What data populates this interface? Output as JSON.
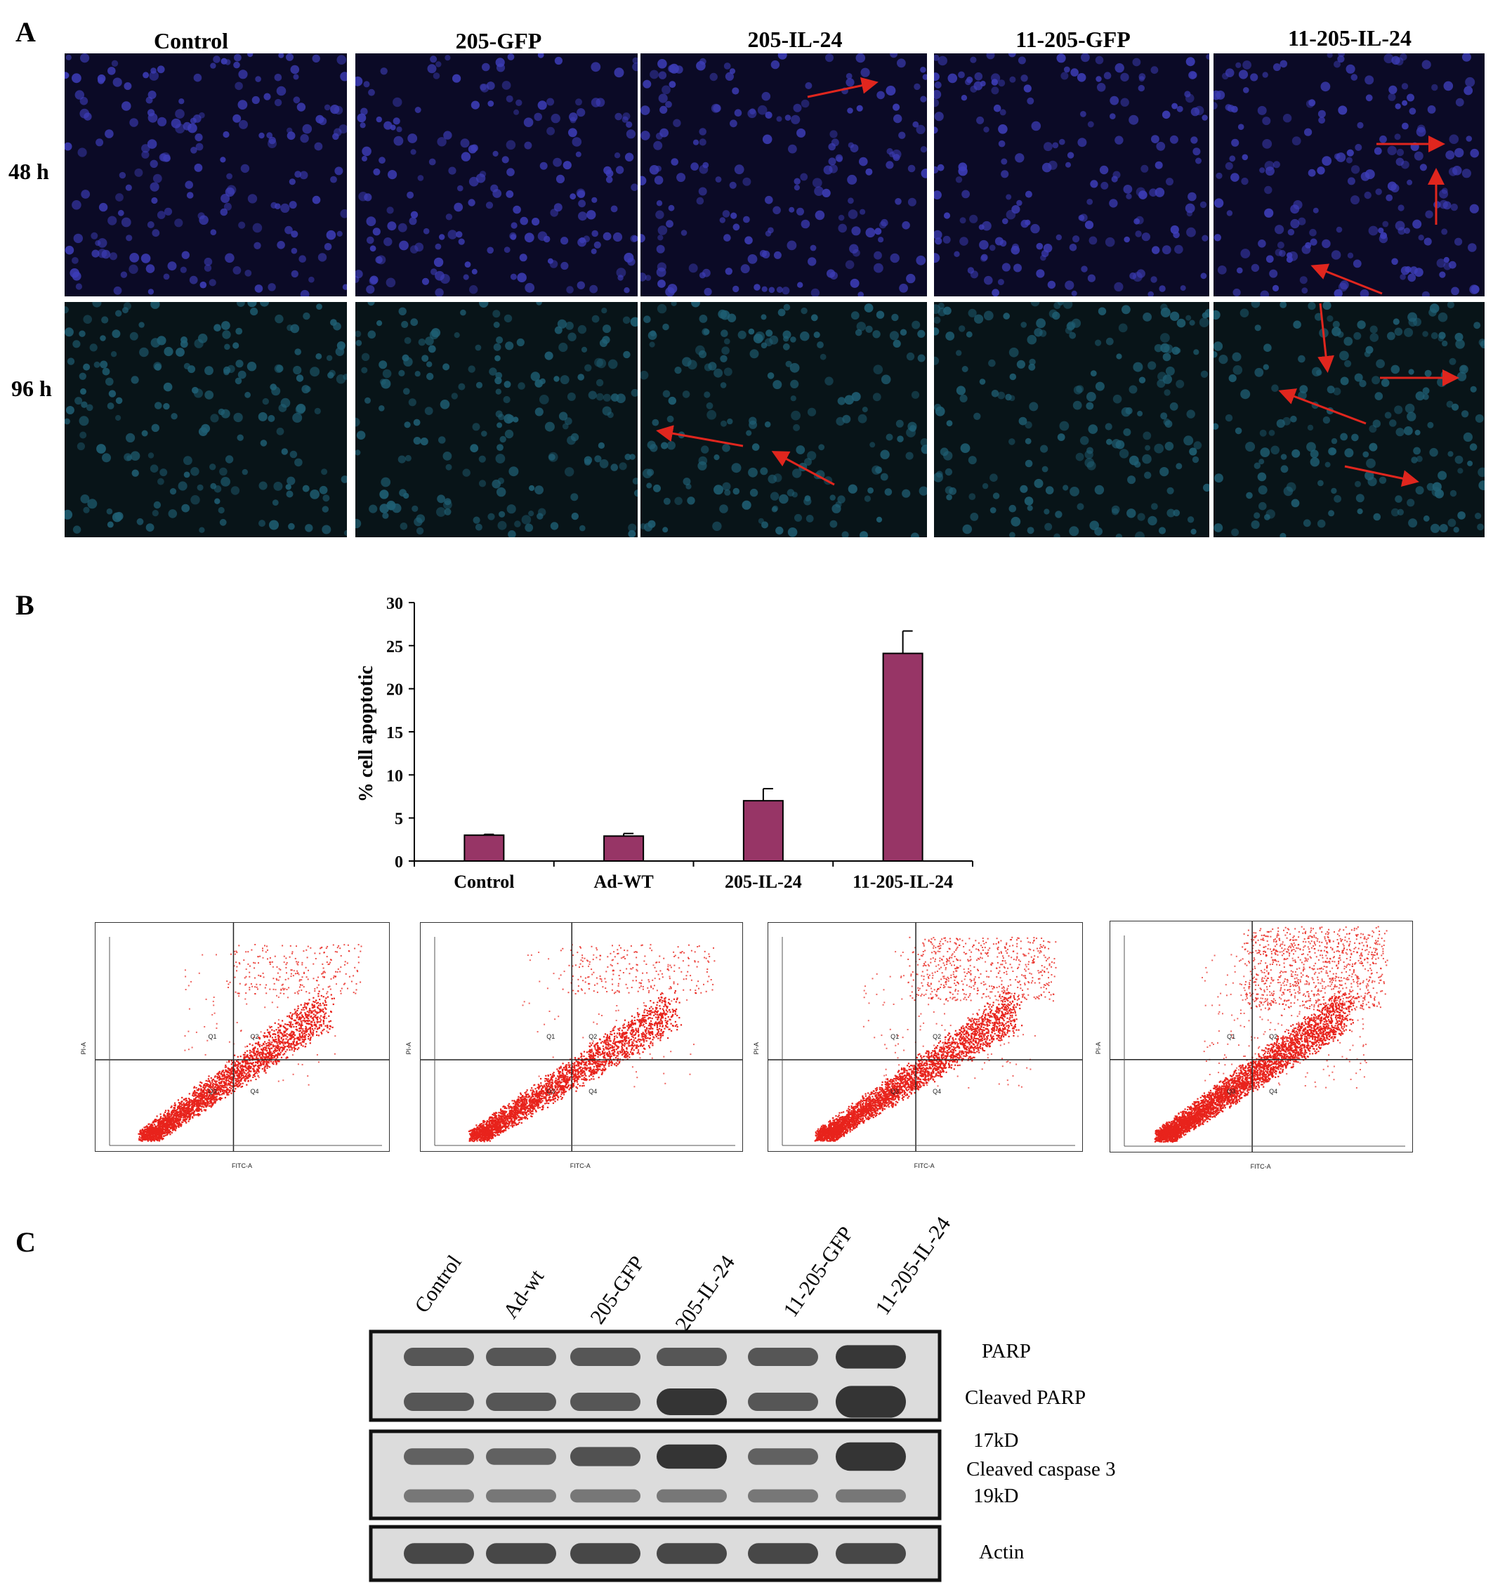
{
  "panel_a": {
    "letter": "A",
    "columns": [
      "Control",
      "205-GFP",
      "205-IL-24",
      "11-205-GFP",
      "11-205-IL-24"
    ],
    "rows": [
      "48 h",
      "96 h"
    ],
    "colors": {
      "row1_bg": "#0b0a26",
      "row1_cell": "#3d3db8",
      "row2_bg": "#081418",
      "row2_cell": "#1f5f74",
      "arrow": "#e0261e"
    }
  },
  "panel_b": {
    "letter": "B",
    "flow_plots": [
      {
        "y_axis": "PI-A",
        "x_axis": "FITC-A",
        "quadrants": [
          "Q1",
          "Q2",
          "Q3",
          "Q4"
        ],
        "level": 0.2
      },
      {
        "y_axis": "PI-A",
        "x_axis": "FITC-A",
        "quadrants": [
          "Q1",
          "Q2",
          "Q3",
          "Q4"
        ],
        "level": 0.2
      },
      {
        "y_axis": "PI-A",
        "x_axis": "FITC-A",
        "quadrants": [
          "Q1",
          "Q2",
          "Q3",
          "Q4"
        ],
        "level": 0.55
      },
      {
        "y_axis": "PI-A",
        "x_axis": "FITC-A",
        "quadrants": [
          "Q1",
          "Q2",
          "Q3",
          "Q4"
        ],
        "level": 1.0
      }
    ],
    "flow_dot_color": "#e8231c"
  },
  "chart_data": {
    "type": "bar",
    "categories": [
      "Control",
      "Ad-WT",
      "205-IL-24",
      "11-205-IL-24"
    ],
    "values": [
      3.0,
      2.9,
      7.0,
      24.1
    ],
    "errors": [
      0.1,
      0.3,
      1.4,
      2.6
    ],
    "ylabel": "% cell apoptotic",
    "xlabel": "",
    "ylim": [
      0,
      30
    ],
    "yticks": [
      0,
      5,
      10,
      15,
      20,
      25,
      30
    ],
    "bar_color": "#973566",
    "grid": false
  },
  "panel_c": {
    "letter": "C",
    "lanes": [
      "Control",
      "Ad-wt",
      "205-GFP",
      "205-IL-24",
      "11-205-GFP",
      "11-205-IL-24"
    ],
    "blot_labels": [
      "PARP",
      "Cleaved PARP",
      "17kD",
      "Cleaved caspase 3",
      "19kD",
      "Actin"
    ]
  }
}
